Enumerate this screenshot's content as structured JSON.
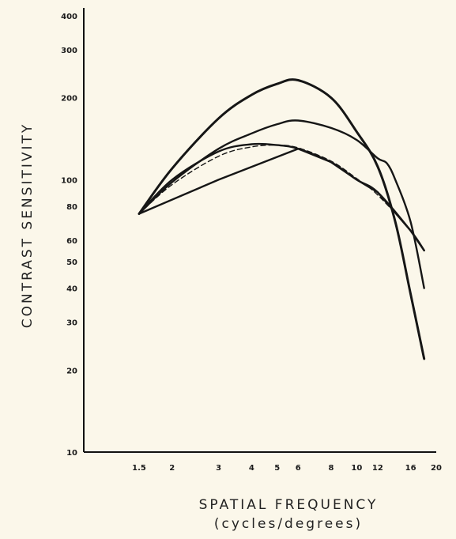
{
  "chart_data": {
    "type": "line",
    "title": "",
    "xlabel": "SPATIAL FREQUENCY",
    "xlabel_sub": "(cycles/degrees)",
    "ylabel": "CONTRAST SENSITIVITY",
    "x_scale": "log",
    "y_scale": "log",
    "xlim": [
      1.0,
      21
    ],
    "ylim": [
      10,
      400
    ],
    "x_ticks": [
      {
        "value": 1.5,
        "label": "1.5"
      },
      {
        "value": 2,
        "label": "2"
      },
      {
        "value": 3,
        "label": "3"
      },
      {
        "value": 4,
        "label": "4"
      },
      {
        "value": 5,
        "label": "5"
      },
      {
        "value": 6,
        "label": "6"
      },
      {
        "value": 8,
        "label": "8"
      },
      {
        "value": 10,
        "label": "10"
      },
      {
        "value": 12,
        "label": "12"
      },
      {
        "value": 16,
        "label": "16"
      },
      {
        "value": 20,
        "label": "20"
      }
    ],
    "y_ticks": [
      {
        "value": 400,
        "label": "400"
      },
      {
        "value": 300,
        "label": "300"
      },
      {
        "value": 200,
        "label": "200"
      },
      {
        "value": 100,
        "label": "100"
      },
      {
        "value": 80,
        "label": "80"
      },
      {
        "value": 60,
        "label": "60"
      },
      {
        "value": 50,
        "label": "50"
      },
      {
        "value": 40,
        "label": "40"
      },
      {
        "value": 30,
        "label": "30"
      },
      {
        "value": 20,
        "label": "20"
      },
      {
        "value": 10,
        "label": "10"
      }
    ],
    "grid": false,
    "series": [
      {
        "style": "solid",
        "x": [
          1.5,
          2,
          3,
          4,
          5,
          6,
          8,
          10,
          12,
          14,
          16,
          18
        ],
        "y": [
          75,
          110,
          168,
          205,
          225,
          232,
          200,
          150,
          112,
          70,
          38,
          22
        ]
      },
      {
        "style": "solid",
        "x": [
          1.5,
          2,
          3,
          4,
          5,
          6,
          8,
          10,
          12,
          13,
          14,
          16,
          18
        ],
        "y": [
          75,
          98,
          130,
          148,
          160,
          165,
          155,
          140,
          120,
          115,
          100,
          70,
          40
        ]
      },
      {
        "style": "solid",
        "x": [
          1.5,
          2,
          3,
          4,
          5,
          6,
          8,
          10,
          12,
          16,
          18
        ],
        "y": [
          75,
          100,
          127,
          135,
          134,
          130,
          116,
          100,
          90,
          65,
          55
        ]
      },
      {
        "style": "dashed",
        "x": [
          1.5,
          2,
          3,
          4,
          5,
          6,
          8,
          10,
          12,
          16,
          18
        ],
        "y": [
          75,
          96,
          122,
          132,
          134,
          131,
          117,
          101,
          88,
          65,
          55
        ]
      },
      {
        "style": "solid",
        "x": [
          1.5,
          3,
          6,
          8,
          10,
          12,
          16,
          18
        ],
        "y": [
          75,
          100,
          130,
          116,
          100,
          90,
          65,
          55
        ]
      }
    ]
  }
}
